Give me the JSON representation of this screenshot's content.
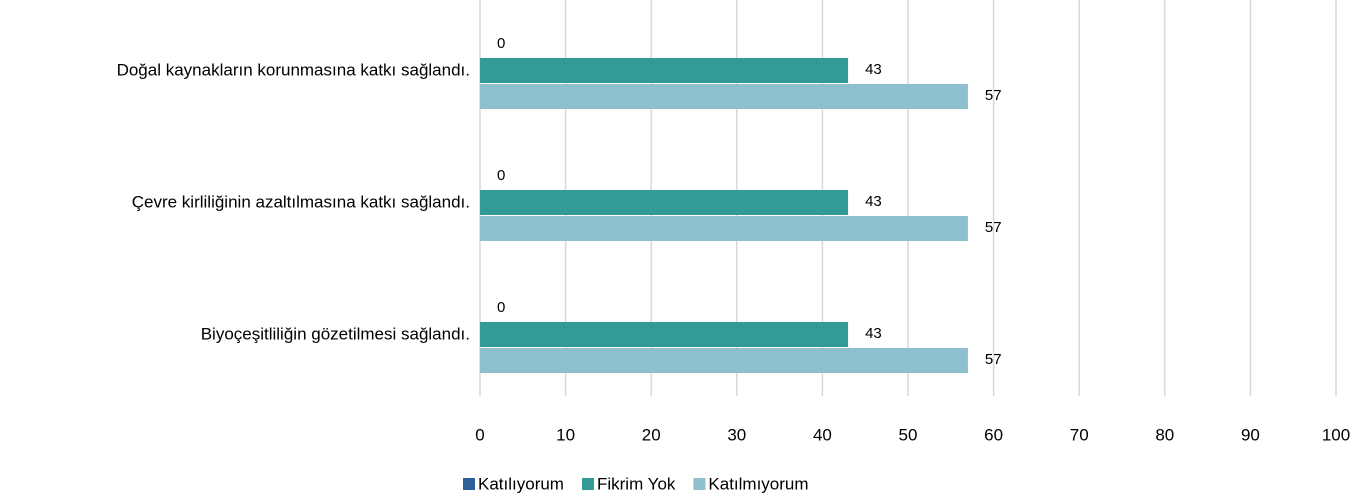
{
  "chart_data": {
    "type": "bar",
    "orientation": "horizontal",
    "categories": [
      "Doğal kaynakların korunmasına katkı sağlandı.",
      "Çevre kirliliğinin azaltılmasına katkı sağlandı.",
      "Biyoçeşitliliğin gözetilmesi sağlandı."
    ],
    "series": [
      {
        "name": "Katılıyorum",
        "color": "#2e5f98",
        "values": [
          0,
          0,
          0
        ]
      },
      {
        "name": "Fikrim Yok",
        "color": "#339b96",
        "values": [
          43,
          43,
          43
        ]
      },
      {
        "name": "Katılmıyorum",
        "color": "#8dbfcf",
        "values": [
          57,
          57,
          57
        ]
      }
    ],
    "xlim": [
      0,
      100
    ],
    "xticks": [
      0,
      10,
      20,
      30,
      40,
      50,
      60,
      70,
      80,
      90,
      100
    ],
    "grid": true,
    "legend": "bottom"
  }
}
